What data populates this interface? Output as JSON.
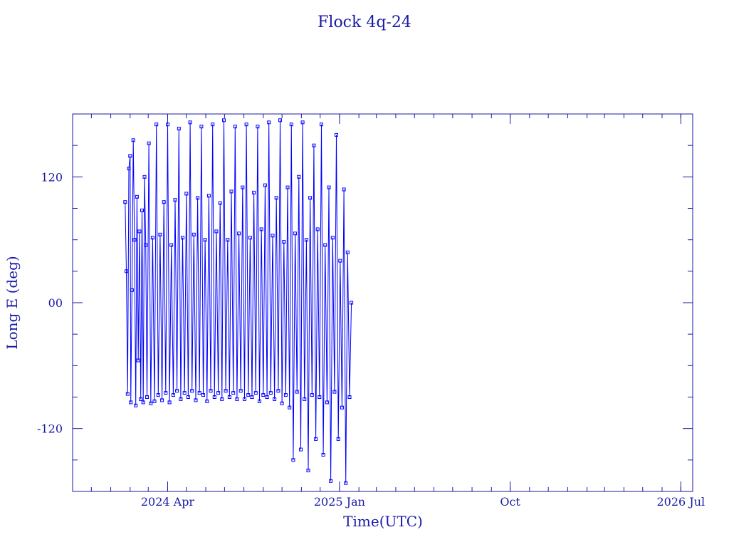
{
  "chart_data": {
    "type": "line",
    "title": "Flock 4q-24",
    "xlabel": "Time(UTC)",
    "ylabel": "Long E (deg)",
    "x_range": [
      "2023-11-01",
      "2026-07-20"
    ],
    "ylim": [
      -180,
      180
    ],
    "x_ticks": [
      {
        "date": "2024-04-01",
        "label": "2024 Apr"
      },
      {
        "date": "2025-01-01",
        "label": "2025 Jan"
      },
      {
        "date": "2025-10-01",
        "label": "Oct"
      },
      {
        "date": "2026-07-01",
        "label": "2026 Jul"
      }
    ],
    "y_ticks": [
      {
        "value": 120,
        "label": "120"
      },
      {
        "value": 0,
        "label": "00"
      },
      {
        "value": -120,
        "label": "-120"
      }
    ],
    "series": [
      {
        "color": "#0000ff",
        "marker": "square",
        "data_start": "2024-01-24",
        "data_end": "2025-01-20",
        "points": [
          [
            "2024-01-24",
            96
          ],
          [
            "2024-01-26",
            30
          ],
          [
            "2024-01-28",
            -87
          ],
          [
            "2024-01-30",
            128
          ],
          [
            "2024-02-01",
            140
          ],
          [
            "2024-02-02",
            -95
          ],
          [
            "2024-02-04",
            12
          ],
          [
            "2024-02-06",
            155
          ],
          [
            "2024-02-08",
            60
          ],
          [
            "2024-02-10",
            -98
          ],
          [
            "2024-02-12",
            101
          ],
          [
            "2024-02-14",
            -55
          ],
          [
            "2024-02-16",
            68
          ],
          [
            "2024-02-18",
            -92
          ],
          [
            "2024-02-20",
            88
          ],
          [
            "2024-02-22",
            -95
          ],
          [
            "2024-02-24",
            120
          ],
          [
            "2024-02-26",
            55
          ],
          [
            "2024-02-28",
            -90
          ],
          [
            "2024-03-02",
            152
          ],
          [
            "2024-03-05",
            -96
          ],
          [
            "2024-03-08",
            62
          ],
          [
            "2024-03-11",
            -94
          ],
          [
            "2024-03-14",
            170
          ],
          [
            "2024-03-17",
            -88
          ],
          [
            "2024-03-20",
            65
          ],
          [
            "2024-03-23",
            -93
          ],
          [
            "2024-03-26",
            96
          ],
          [
            "2024-03-29",
            -86
          ],
          [
            "2024-04-01",
            170
          ],
          [
            "2024-04-04",
            -95
          ],
          [
            "2024-04-07",
            55
          ],
          [
            "2024-04-10",
            -88
          ],
          [
            "2024-04-13",
            98
          ],
          [
            "2024-04-16",
            -84
          ],
          [
            "2024-04-19",
            166
          ],
          [
            "2024-04-22",
            -92
          ],
          [
            "2024-04-25",
            62
          ],
          [
            "2024-04-28",
            -86
          ],
          [
            "2024-05-01",
            104
          ],
          [
            "2024-05-04",
            -90
          ],
          [
            "2024-05-07",
            172
          ],
          [
            "2024-05-10",
            -84
          ],
          [
            "2024-05-13",
            65
          ],
          [
            "2024-05-16",
            -93
          ],
          [
            "2024-05-19",
            100
          ],
          [
            "2024-05-22",
            -86
          ],
          [
            "2024-05-25",
            168
          ],
          [
            "2024-05-28",
            -88
          ],
          [
            "2024-05-31",
            60
          ],
          [
            "2024-06-03",
            -94
          ],
          [
            "2024-06-06",
            102
          ],
          [
            "2024-06-09",
            -84
          ],
          [
            "2024-06-12",
            170
          ],
          [
            "2024-06-15",
            -90
          ],
          [
            "2024-06-18",
            68
          ],
          [
            "2024-06-21",
            -86
          ],
          [
            "2024-06-24",
            95
          ],
          [
            "2024-06-27",
            -92
          ],
          [
            "2024-06-30",
            174
          ],
          [
            "2024-07-03",
            -84
          ],
          [
            "2024-07-06",
            60
          ],
          [
            "2024-07-09",
            -90
          ],
          [
            "2024-07-12",
            106
          ],
          [
            "2024-07-15",
            -86
          ],
          [
            "2024-07-18",
            168
          ],
          [
            "2024-07-21",
            -92
          ],
          [
            "2024-07-24",
            66
          ],
          [
            "2024-07-27",
            -84
          ],
          [
            "2024-07-30",
            110
          ],
          [
            "2024-08-02",
            -92
          ],
          [
            "2024-08-05",
            170
          ],
          [
            "2024-08-08",
            -88
          ],
          [
            "2024-08-11",
            62
          ],
          [
            "2024-08-14",
            -90
          ],
          [
            "2024-08-17",
            105
          ],
          [
            "2024-08-20",
            -86
          ],
          [
            "2024-08-23",
            168
          ],
          [
            "2024-08-26",
            -94
          ],
          [
            "2024-08-29",
            70
          ],
          [
            "2024-09-01",
            -88
          ],
          [
            "2024-09-04",
            112
          ],
          [
            "2024-09-07",
            -90
          ],
          [
            "2024-09-10",
            172
          ],
          [
            "2024-09-13",
            -86
          ],
          [
            "2024-09-16",
            64
          ],
          [
            "2024-09-19",
            -92
          ],
          [
            "2024-09-22",
            100
          ],
          [
            "2024-09-25",
            -84
          ],
          [
            "2024-09-28",
            174
          ],
          [
            "2024-10-01",
            -96
          ],
          [
            "2024-10-04",
            58
          ],
          [
            "2024-10-07",
            -88
          ],
          [
            "2024-10-10",
            110
          ],
          [
            "2024-10-13",
            -100
          ],
          [
            "2024-10-16",
            170
          ],
          [
            "2024-10-19",
            -150
          ],
          [
            "2024-10-22",
            66
          ],
          [
            "2024-10-25",
            -85
          ],
          [
            "2024-10-28",
            120
          ],
          [
            "2024-10-31",
            -140
          ],
          [
            "2024-11-03",
            172
          ],
          [
            "2024-11-06",
            -92
          ],
          [
            "2024-11-09",
            60
          ],
          [
            "2024-11-12",
            -160
          ],
          [
            "2024-11-15",
            100
          ],
          [
            "2024-11-18",
            -88
          ],
          [
            "2024-11-21",
            150
          ],
          [
            "2024-11-24",
            -130
          ],
          [
            "2024-11-27",
            70
          ],
          [
            "2024-11-30",
            -90
          ],
          [
            "2024-12-03",
            170
          ],
          [
            "2024-12-06",
            -145
          ],
          [
            "2024-12-09",
            55
          ],
          [
            "2024-12-12",
            -95
          ],
          [
            "2024-12-15",
            110
          ],
          [
            "2024-12-18",
            -170
          ],
          [
            "2024-12-21",
            62
          ],
          [
            "2024-12-24",
            -85
          ],
          [
            "2024-12-27",
            160
          ],
          [
            "2024-12-30",
            -130
          ],
          [
            "2025-01-02",
            40
          ],
          [
            "2025-01-05",
            -100
          ],
          [
            "2025-01-08",
            108
          ],
          [
            "2025-01-11",
            -172
          ],
          [
            "2025-01-14",
            48
          ],
          [
            "2025-01-17",
            -90
          ],
          [
            "2025-01-20",
            0
          ]
        ]
      }
    ]
  }
}
